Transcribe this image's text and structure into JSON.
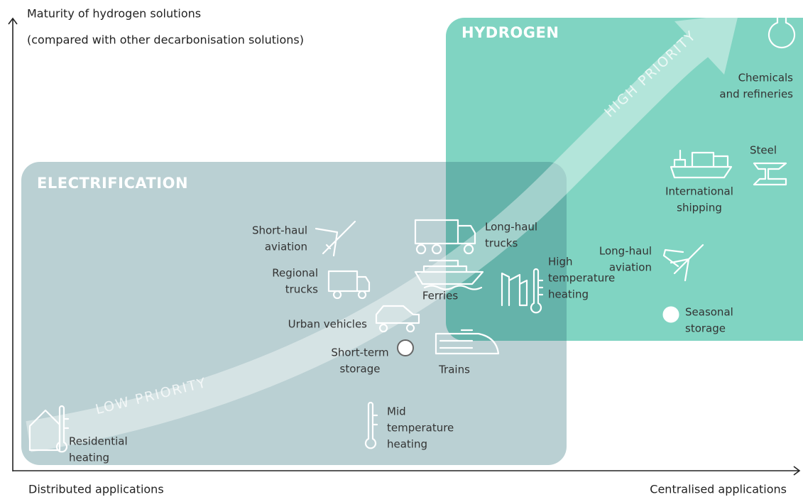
{
  "axes": {
    "y_label": [
      "Maturity of hydrogen solutions",
      "(compared with other decarbonisation solutions)"
    ],
    "x_left": "Distributed applications",
    "x_right": "Centralised applications"
  },
  "regions": [
    {
      "label": "HYDROGEN"
    },
    {
      "label": "ELECTRIFICATION"
    }
  ],
  "arrow": {
    "low": "LOW PRIORITY",
    "high": "HIGH PRIORITY"
  },
  "items": [
    {
      "label": [
        "Chemicals",
        "and refineries"
      ]
    },
    {
      "label": [
        "Steel"
      ]
    },
    {
      "label": [
        "International",
        "shipping"
      ]
    },
    {
      "label": [
        "Long-haul",
        "aviation"
      ]
    },
    {
      "label": [
        "Seasonal",
        "storage"
      ]
    },
    {
      "label": [
        "High",
        "temperature",
        "heating"
      ]
    },
    {
      "label": [
        "Long-haul",
        "trucks"
      ]
    },
    {
      "label": [
        "Ferries"
      ]
    },
    {
      "label": [
        "Short-haul",
        "aviation"
      ]
    },
    {
      "label": [
        "Regional",
        "trucks"
      ]
    },
    {
      "label": [
        "Urban vehicles"
      ]
    },
    {
      "label": [
        "Short-term",
        "storage"
      ]
    },
    {
      "label": [
        "Trains"
      ]
    },
    {
      "label": [
        "Mid",
        "temperature",
        "heating"
      ]
    },
    {
      "label": [
        "Residential",
        "heating"
      ]
    }
  ]
}
